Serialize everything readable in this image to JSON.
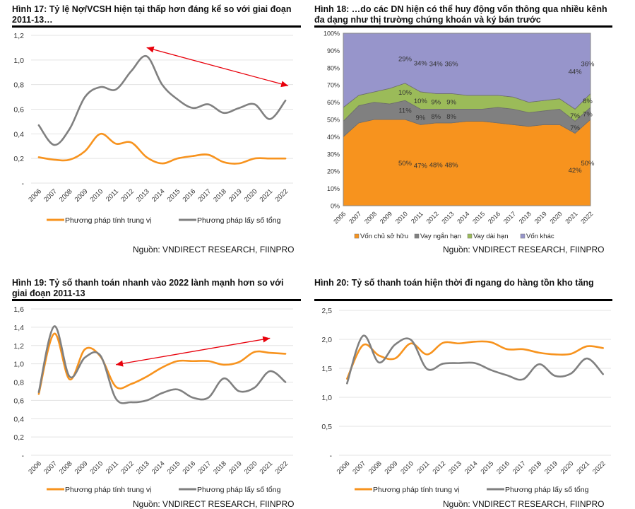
{
  "colors": {
    "orange": "#F7931E",
    "gray": "#808080",
    "green": "#9BBB59",
    "purple": "#9795CB",
    "arrow": "#E8000B",
    "grid": "#E3E3E3",
    "axis_text": "#333333"
  },
  "source_label": "Nguồn: VNDIRECT RESEARCH, FIINPRO",
  "chart_data": [
    {
      "id": "fig17",
      "type": "line",
      "title": "Hình 17: Tỷ lệ Nợ/VCSH hiện tại thấp hơn đáng kể so với giai đoạn 2011-13…",
      "title_lines": [
        "Hình 17: Tỷ lệ Nợ/VCSH hiện tại thấp hơn đáng kể so với giai đoạn",
        "2011-13…"
      ],
      "x": [
        "2006",
        "2007",
        "2008",
        "2009",
        "2010",
        "2011",
        "2012",
        "2013",
        "2014",
        "2015",
        "2016",
        "2017",
        "2018",
        "2019",
        "2020",
        "2021",
        "2022"
      ],
      "yticks": [
        "-",
        "0,2",
        "0,4",
        "0,6",
        "0,8",
        "1,0",
        "1,2"
      ],
      "ylim": [
        0,
        1.2
      ],
      "series": [
        {
          "name": "Phương pháp tính trung vị",
          "color": "#F7931E",
          "values": [
            0.21,
            0.19,
            0.19,
            0.26,
            0.4,
            0.32,
            0.33,
            0.21,
            0.16,
            0.2,
            0.22,
            0.23,
            0.17,
            0.16,
            0.2,
            0.2,
            0.2
          ]
        },
        {
          "name": "Phương pháp lấy số tổng",
          "color": "#808080",
          "values": [
            0.47,
            0.31,
            0.44,
            0.7,
            0.78,
            0.76,
            0.91,
            1.03,
            0.8,
            0.68,
            0.61,
            0.64,
            0.57,
            0.61,
            0.64,
            0.52,
            0.67
          ]
        }
      ],
      "annotation": {
        "type": "double-arrow",
        "from": [
          "2013",
          1.1
        ],
        "to": [
          "2022",
          0.79
        ]
      },
      "grid": true,
      "legend": "bottom",
      "source": "Nguồn: VNDIRECT RESEARCH, FIINPRO"
    },
    {
      "id": "fig18",
      "type": "area",
      "stacked": true,
      "title": "Hình 18: …do các DN hiện có thể huy động vốn thông qua nhiều kênh đa dạng như thị trường chứng khoán và ký bán trước",
      "title_lines": [
        "Hình 18: …do các DN hiện có thể huy động vốn thông qua nhiều kênh",
        "đa dạng như thị trường chứng khoán và ký bán trước"
      ],
      "x": [
        "2006",
        "2007",
        "2008",
        "2009",
        "2010",
        "2011",
        "2012",
        "2013",
        "2014",
        "2015",
        "2016",
        "2017",
        "2018",
        "2019",
        "2020",
        "2021",
        "2022"
      ],
      "yticks": [
        "0%",
        "10%",
        "20%",
        "30%",
        "40%",
        "50%",
        "60%",
        "70%",
        "80%",
        "90%",
        "100%"
      ],
      "ylim": [
        0,
        100
      ],
      "series": [
        {
          "name": "Vốn chủ sở hữu",
          "color": "#F7931E",
          "values": [
            40,
            48,
            50,
            50,
            50,
            47,
            48,
            48,
            49,
            49,
            48,
            47,
            46,
            47,
            47,
            42,
            50
          ]
        },
        {
          "name": "Vay ngắn hạn",
          "color": "#808080",
          "values": [
            9,
            10,
            10,
            9,
            11,
            9,
            8,
            8,
            7,
            7,
            9,
            9,
            8,
            8,
            9,
            7,
            7
          ]
        },
        {
          "name": "Vay dài hạn",
          "color": "#9BBB59",
          "values": [
            8,
            6,
            6,
            9,
            10,
            10,
            9,
            9,
            8,
            8,
            7,
            7,
            6,
            6,
            6,
            7,
            8
          ]
        },
        {
          "name": "Vốn khác",
          "color": "#9795CB",
          "values": [
            43,
            36,
            34,
            32,
            29,
            34,
            34,
            36,
            36,
            36,
            36,
            37,
            40,
            39,
            38,
            44,
            36
          ]
        }
      ],
      "data_labels": [
        {
          "x": "2010",
          "series": "Vốn khác",
          "text": "29%"
        },
        {
          "x": "2011",
          "series": "Vốn khác",
          "text": "34%"
        },
        {
          "x": "2012",
          "series": "Vốn khác",
          "text": "34%"
        },
        {
          "x": "2013",
          "series": "Vốn khác",
          "text": "36%"
        },
        {
          "x": "2010",
          "series": "Vay dài hạn",
          "text": "10%"
        },
        {
          "x": "2011",
          "series": "Vay dài hạn",
          "text": "10%"
        },
        {
          "x": "2012",
          "series": "Vay dài hạn",
          "text": "9%"
        },
        {
          "x": "2013",
          "series": "Vay dài hạn",
          "text": "9%"
        },
        {
          "x": "2010",
          "series": "Vay ngắn hạn",
          "text": "11%"
        },
        {
          "x": "2011",
          "series": "Vay ngắn hạn",
          "text": "9%"
        },
        {
          "x": "2012",
          "series": "Vay ngắn hạn",
          "text": "8%"
        },
        {
          "x": "2013",
          "series": "Vay ngắn hạn",
          "text": "8%"
        },
        {
          "x": "2010",
          "series": "Vốn chủ sở hữu",
          "text": "50%"
        },
        {
          "x": "2011",
          "series": "Vốn chủ sở hữu",
          "text": "47%"
        },
        {
          "x": "2012",
          "series": "Vốn chủ sở hữu",
          "text": "48%"
        },
        {
          "x": "2013",
          "series": "Vốn chủ sở hữu",
          "text": "48%"
        },
        {
          "x": "2021",
          "series": "Vốn khác",
          "text": "44%"
        },
        {
          "x": "2022",
          "series": "Vốn khác",
          "text": "36%"
        },
        {
          "x": "2021",
          "series": "Vay dài hạn",
          "text": "7%"
        },
        {
          "x": "2022",
          "series": "Vay dài hạn",
          "text": "8%"
        },
        {
          "x": "2021",
          "series": "Vay ngắn hạn",
          "text": "7%"
        },
        {
          "x": "2022",
          "series": "Vay ngắn hạn",
          "text": "7%"
        },
        {
          "x": "2021",
          "series": "Vốn chủ sở hữu",
          "text": "42%"
        },
        {
          "x": "2022",
          "series": "Vốn chủ sở hữu",
          "text": "50%"
        }
      ],
      "legend": "bottom",
      "source": "Nguồn: VNDIRECT RESEARCH, FIINPRO"
    },
    {
      "id": "fig19",
      "type": "line",
      "title": "Hình 19: Tỷ số thanh toán nhanh vào 2022 lành mạnh hơn so với giai đoạn 2011-13",
      "title_lines": [
        "Hình 19: Tỷ số thanh toán nhanh vào 2022 lành mạnh hơn so với",
        "giai đoạn 2011-13"
      ],
      "x": [
        "2006",
        "2007",
        "2008",
        "2009",
        "2010",
        "2011",
        "2012",
        "2013",
        "2014",
        "2015",
        "2016",
        "2017",
        "2018",
        "2019",
        "2020",
        "2021",
        "2022"
      ],
      "yticks": [
        "-",
        "0,2",
        "0,4",
        "0,6",
        "0,8",
        "1,0",
        "1,2",
        "1,4",
        "1,6"
      ],
      "ylim": [
        0,
        1.6
      ],
      "series": [
        {
          "name": "Phương pháp tính trung vị",
          "color": "#F7931E",
          "values": [
            0.67,
            1.33,
            0.83,
            1.16,
            1.08,
            0.75,
            0.78,
            0.86,
            0.96,
            1.03,
            1.03,
            1.03,
            0.99,
            1.02,
            1.13,
            1.12,
            1.11
          ]
        },
        {
          "name": "Phương pháp lấy số tổng",
          "color": "#808080",
          "values": [
            0.69,
            1.41,
            0.86,
            1.07,
            1.09,
            0.62,
            0.58,
            0.6,
            0.68,
            0.72,
            0.63,
            0.63,
            0.84,
            0.7,
            0.74,
            0.92,
            0.8
          ]
        }
      ],
      "annotation": {
        "type": "double-arrow",
        "from": [
          "2011",
          0.99
        ],
        "to": [
          "2021",
          1.28
        ]
      },
      "grid": true,
      "legend": "bottom",
      "source": "Nguồn: VNDIRECT RESEARCH, FIINPRO"
    },
    {
      "id": "fig20",
      "type": "line",
      "title": "Hình 20: Tỷ số thanh toán hiện thời đi ngang do hàng tồn kho tăng",
      "title_lines": [
        "Hình 20: Tỷ số thanh toán hiện thời đi ngang do hàng tồn kho tăng"
      ],
      "x": [
        "2006",
        "2007",
        "2008",
        "2009",
        "2010",
        "2011",
        "2012",
        "2013",
        "2014",
        "2015",
        "2016",
        "2017",
        "2018",
        "2019",
        "2020",
        "2021",
        "2022"
      ],
      "yticks": [
        "-",
        "0,5",
        "1,0",
        "1,5",
        "2,0",
        "2,5"
      ],
      "ylim": [
        0,
        2.5
      ],
      "series": [
        {
          "name": "Phương pháp tính trung vị",
          "color": "#F7931E",
          "values": [
            1.32,
            1.9,
            1.72,
            1.67,
            1.93,
            1.74,
            1.94,
            1.93,
            1.96,
            1.95,
            1.83,
            1.83,
            1.77,
            1.74,
            1.75,
            1.88,
            1.85
          ]
        },
        {
          "name": "Phương pháp lấy số tổng",
          "color": "#808080",
          "values": [
            1.24,
            2.06,
            1.6,
            1.91,
            1.99,
            1.49,
            1.58,
            1.59,
            1.59,
            1.47,
            1.38,
            1.31,
            1.57,
            1.37,
            1.41,
            1.67,
            1.4
          ]
        }
      ],
      "grid": true,
      "legend": "bottom",
      "source": "Nguồn: VNDIRECT RESEARCH, FIINPRO"
    }
  ]
}
